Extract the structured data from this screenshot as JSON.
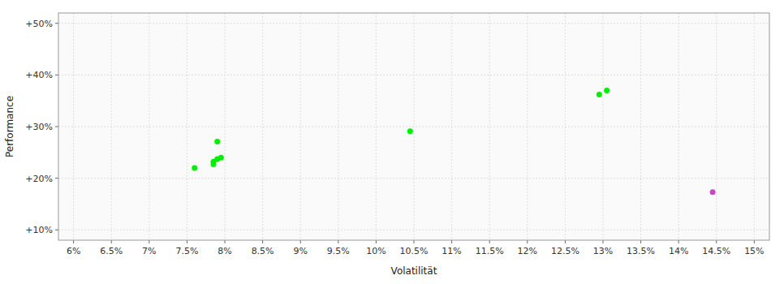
{
  "chart_data": {
    "type": "scatter",
    "xlabel": "Volatilität",
    "ylabel": "Performance",
    "grid": true,
    "xlim": [
      0.058,
      0.152
    ],
    "ylim": [
      0.08,
      0.52
    ],
    "xticks": [
      {
        "value": 0.06,
        "label": "6%"
      },
      {
        "value": 0.065,
        "label": "6.5%"
      },
      {
        "value": 0.07,
        "label": "7%"
      },
      {
        "value": 0.075,
        "label": "7.5%"
      },
      {
        "value": 0.08,
        "label": "8%"
      },
      {
        "value": 0.085,
        "label": "8.5%"
      },
      {
        "value": 0.09,
        "label": "9%"
      },
      {
        "value": 0.095,
        "label": "9.5%"
      },
      {
        "value": 0.1,
        "label": "10%"
      },
      {
        "value": 0.105,
        "label": "10.5%"
      },
      {
        "value": 0.11,
        "label": "11%"
      },
      {
        "value": 0.115,
        "label": "11.5%"
      },
      {
        "value": 0.12,
        "label": "12%"
      },
      {
        "value": 0.125,
        "label": "12.5%"
      },
      {
        "value": 0.13,
        "label": "13%"
      },
      {
        "value": 0.135,
        "label": "13.5%"
      },
      {
        "value": 0.14,
        "label": "14%"
      },
      {
        "value": 0.145,
        "label": "14.5%"
      },
      {
        "value": 0.15,
        "label": "15%"
      }
    ],
    "yticks": [
      {
        "value": 0.1,
        "label": "+10%"
      },
      {
        "value": 0.2,
        "label": "+20%"
      },
      {
        "value": 0.3,
        "label": "+30%"
      },
      {
        "value": 0.4,
        "label": "+40%"
      },
      {
        "value": 0.5,
        "label": "+50%"
      }
    ],
    "series": [
      {
        "color": "#00ee00",
        "x": [
          0.076,
          0.0785,
          0.079,
          0.0795,
          0.0785,
          0.079,
          0.1045,
          0.1295,
          0.1305
        ],
        "values": [
          0.22,
          0.232,
          0.237,
          0.24,
          0.227,
          0.271,
          0.291,
          0.362,
          0.37
        ]
      },
      {
        "color": "#cc44cc",
        "x": [
          0.1445
        ],
        "values": [
          0.173
        ]
      }
    ]
  }
}
